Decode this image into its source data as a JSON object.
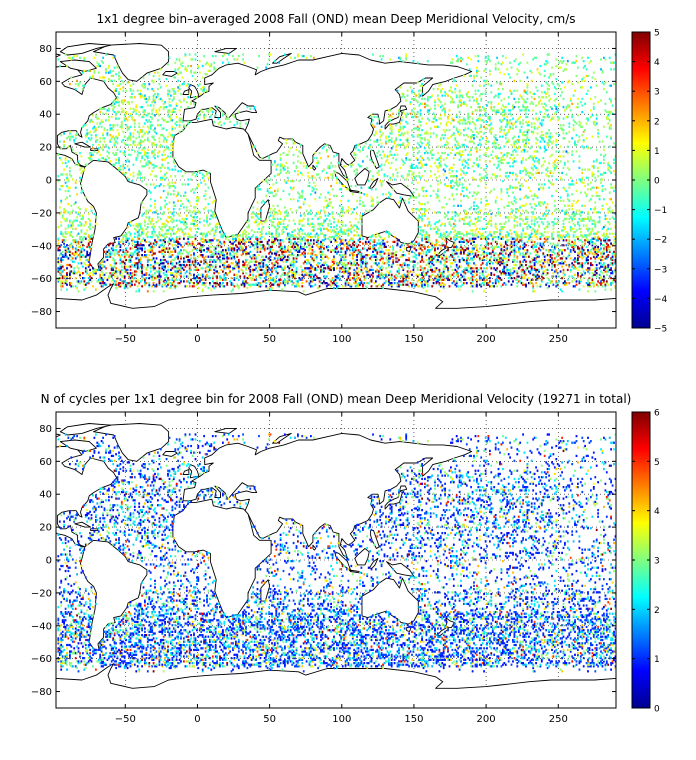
{
  "chart_data": [
    {
      "type": "heatmap",
      "title": "1x1 degree bin–averaged 2008 Fall (OND) mean Deep Meridional Velocity, cm/s",
      "xlabel": "",
      "ylabel": "",
      "xlim": [
        -98,
        290
      ],
      "ylim": [
        -90,
        90
      ],
      "xticks": [
        -50,
        0,
        50,
        100,
        150,
        200,
        250
      ],
      "yticks": [
        -80,
        -60,
        -40,
        -20,
        0,
        20,
        40,
        60,
        80
      ],
      "grid": true,
      "grid_style": "dotted",
      "colormap": "jet",
      "colorbar": {
        "min": -5,
        "max": 5,
        "ticks": [
          5,
          4,
          3,
          2,
          1,
          0,
          -1,
          -2,
          -3,
          -4,
          -5
        ]
      },
      "background": "world coastline map (longitude -98 to 290, latitude -90 to 90)",
      "data_description": "sparse 1x1 degree bins; values mostly near 0, large positive/negative values concentrated in the Southern Ocean (40S–60S)"
    },
    {
      "type": "heatmap",
      "title": "N of cycles per 1x1 degree bin for 2008 Fall (OND) mean Deep Meridional Velocity (19271 in total)",
      "xlabel": "",
      "ylabel": "",
      "xlim": [
        -98,
        290
      ],
      "ylim": [
        -90,
        90
      ],
      "xticks": [
        -50,
        0,
        50,
        100,
        150,
        200,
        250
      ],
      "yticks": [
        -80,
        -60,
        -40,
        -20,
        0,
        20,
        40,
        60,
        80
      ],
      "grid": true,
      "grid_style": "dotted",
      "colormap": "jet",
      "colorbar": {
        "min": 0,
        "max": 6,
        "ticks": [
          6,
          5,
          4,
          3,
          2,
          1,
          0
        ]
      },
      "background": "world coastline map (longitude -98 to 290, latitude -90 to 90)",
      "data_description": "sparse 1x1 degree bins; counts mostly 1–2 (blue), occasional 3–6"
    }
  ]
}
